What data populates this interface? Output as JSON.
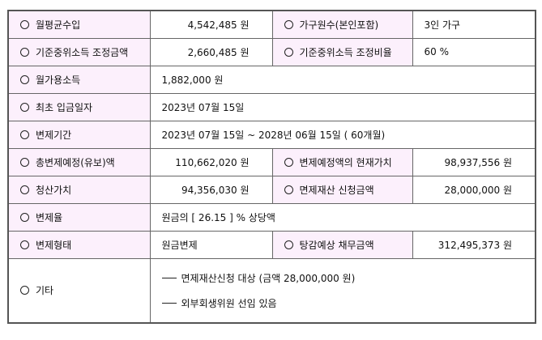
{
  "rows": [
    {
      "label": "월평균수입",
      "value": "4,542,485 원",
      "label2": "가구원수(본인포함)",
      "value2": "3인 가구"
    },
    {
      "label": "기준중위소득 조정금액",
      "value": "2,660,485 원",
      "label2": "기준중위소득 조정비율",
      "value2": "60 %"
    },
    {
      "label": "월가용소득",
      "value": "1,882,000 원"
    },
    {
      "label": "최초 입금일자",
      "value": "2023년 07월 15일"
    },
    {
      "label": "변제기간",
      "value": "2023년 07월 15일 ~ 2028년 06월 15일 ( 60개월)"
    },
    {
      "label": "총변제예정(유보)액",
      "value": "110,662,020 원",
      "label2": "변제예정액의 현재가치",
      "value2": "98,937,556 원"
    },
    {
      "label": "청산가치",
      "value": "94,356,030 원",
      "label2": "면제재산 신청금액",
      "value2": "28,000,000 원"
    },
    {
      "label": "변제율",
      "value": "원금의 [ 26.15 ] % 상당액"
    },
    {
      "label": "변제형태",
      "value": "원금변제",
      "label2": "탕감예상 채무금액",
      "value2": "312,495,373 원"
    }
  ],
  "other": {
    "label": "기타",
    "notes": [
      "면제재산신청 대상  (금액 28,000,000 원)",
      "외부회생위원 선임 있음"
    ]
  },
  "colors": {
    "label_bg": "#fcf0fc",
    "border": "#555555"
  }
}
